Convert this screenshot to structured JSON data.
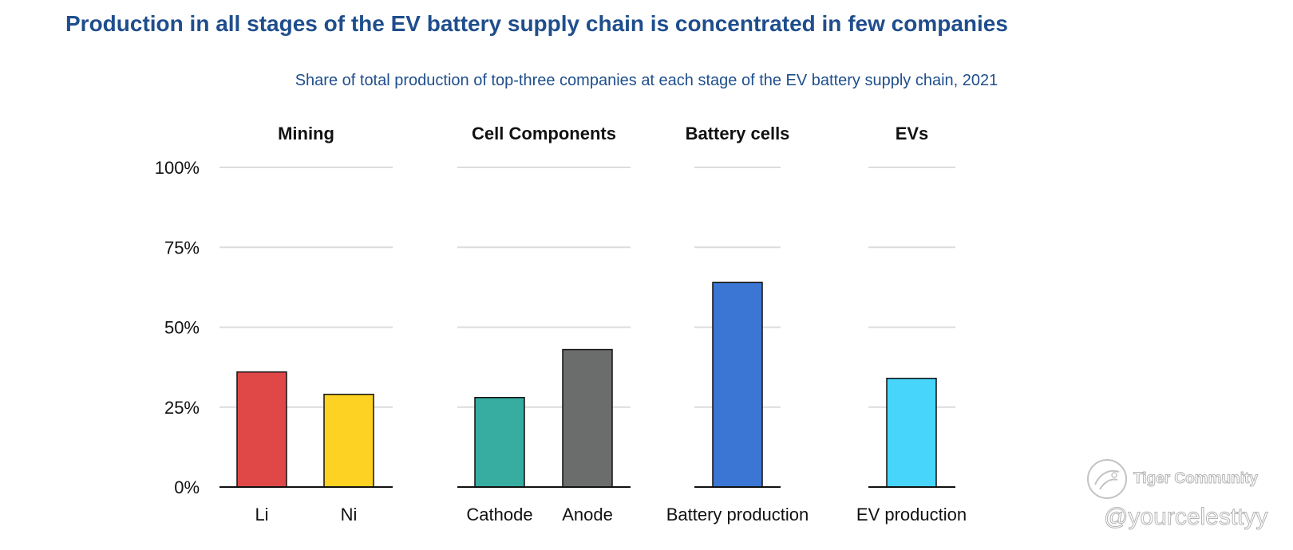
{
  "header": {
    "title": "Production in all stages of the EV battery supply chain is concentrated in few companies",
    "subtitle": "Share of total production of top-three companies at each stage of the EV battery supply chain, 2021"
  },
  "chart_data": {
    "type": "bar",
    "title": "Share of total production of top-three companies at each stage of the EV battery supply chain, 2021",
    "ylim": [
      0,
      100
    ],
    "y_ticks": [
      0,
      25,
      50,
      75,
      100
    ],
    "y_tick_labels": [
      "0%",
      "25%",
      "50%",
      "75%",
      "100%"
    ],
    "grid": true,
    "panels": [
      {
        "name": "Mining",
        "categories": [
          "Li",
          "Ni"
        ],
        "values": [
          36,
          29
        ],
        "colors": [
          "#e04848",
          "#fdd223"
        ]
      },
      {
        "name": "Cell Components",
        "categories": [
          "Cathode",
          "Anode"
        ],
        "values": [
          28,
          43
        ],
        "colors": [
          "#37aca1",
          "#6b6d6c"
        ]
      },
      {
        "name": "Battery cells",
        "categories": [
          "Battery production"
        ],
        "values": [
          64
        ],
        "colors": [
          "#3b76d5"
        ]
      },
      {
        "name": "EVs",
        "categories": [
          "EV production"
        ],
        "values": [
          34
        ],
        "colors": [
          "#47d5fb"
        ]
      }
    ]
  },
  "watermark": {
    "brand": "Tiger Community",
    "handle": "@yourcelesttyy"
  }
}
